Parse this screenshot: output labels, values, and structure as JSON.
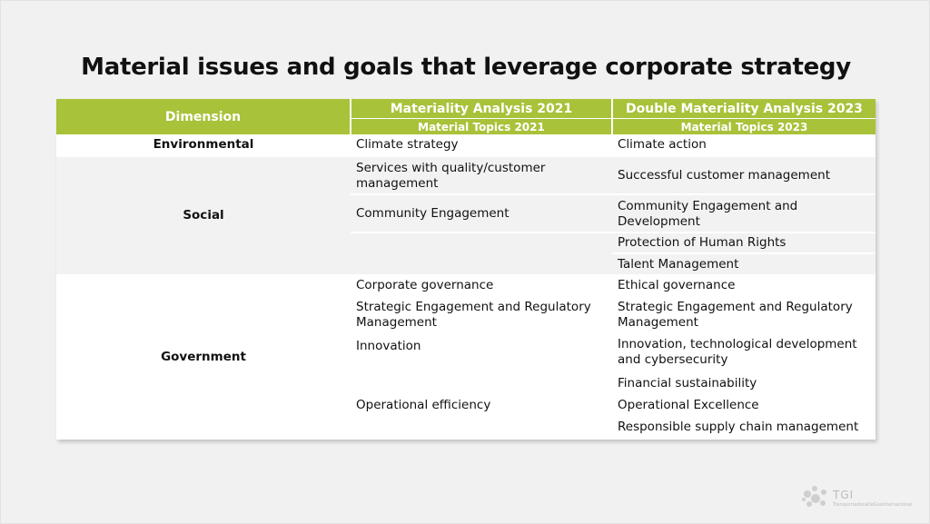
{
  "title": "Material issues and goals that leverage corporate strategy",
  "table": {
    "header": {
      "dimension": "Dimension",
      "col2_main": "Materiality Analysis 2021",
      "col2_sub": "Material Topics 2021",
      "col3_main": "Double Materiality Analysis 2023",
      "col3_sub": "Material Topics 2023"
    },
    "environmental": {
      "label": "Environmental",
      "t2021": "Climate strategy",
      "t2023": "Climate action"
    },
    "social": {
      "label": "Social",
      "r1_2021": "Services with quality/customer management",
      "r1_2023": "Successful customer management",
      "r2_2021": "Community Engagement",
      "r2_2023": "Community Engagement and Development",
      "r3_2023": "Protection of Human Rights",
      "r4_2023": "Talent Management"
    },
    "government": {
      "label": "Government",
      "r1_2021": "Corporate governance",
      "r1_2023": "Ethical governance",
      "r2_2021": "Strategic Engagement and Regulatory Management",
      "r2_2023": "Strategic Engagement and Regulatory Management",
      "r3_2021": "Innovation",
      "r3_2023": "Innovation, technological development and cybersecurity",
      "r4_2023": "Financial sustainability",
      "r5_2021": "Operational efficiency",
      "r5_2023": "Operational Excellence",
      "r6_2023": "Responsible supply chain management"
    }
  },
  "logo": {
    "name": "TGI",
    "subtitle": "TransportadoraDeGasInternacional"
  },
  "colors": {
    "header_green": "#a8c23a",
    "row_grey": "#f2f2f2"
  }
}
